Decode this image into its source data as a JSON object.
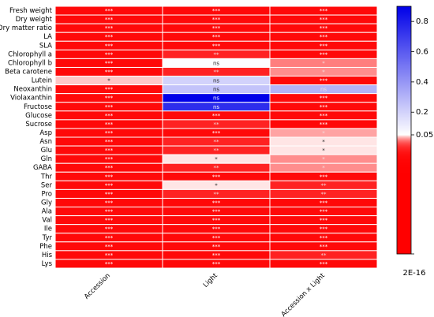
{
  "chart_data": {
    "type": "heatmap",
    "rows": [
      "Fresh weight",
      "Dry weight",
      "Dry matter ratio",
      "LA",
      "SLA",
      "Chlorophyll a",
      "Chlorophyll b",
      "Beta carotene",
      "Lutein",
      "Neoxanthin",
      "Violaxanthin",
      "Fructose",
      "Glucose",
      "Sucrose",
      "Asp",
      "Asn",
      "Glu",
      "Gln",
      "GABA",
      "Thr",
      "Ser",
      "Pro",
      "Gly",
      "Ala",
      "Val",
      "Ile",
      "Tyr",
      "Phe",
      "His",
      "Lys"
    ],
    "columns": [
      "Accession",
      "Light",
      "Accession x Light"
    ],
    "values": [
      [
        0.0001,
        0.0001,
        0.0001
      ],
      [
        0.0001,
        0.0001,
        0.0001
      ],
      [
        0.0001,
        0.0001,
        0.0001
      ],
      [
        0.0001,
        0.0001,
        0.0001
      ],
      [
        0.0001,
        0.0001,
        0.0001
      ],
      [
        0.0001,
        0.001,
        0.0001
      ],
      [
        0.0001,
        0.06,
        0.012
      ],
      [
        0.0001,
        0.001,
        0.015
      ],
      [
        0.03,
        0.2,
        0.0001
      ],
      [
        0.0001,
        0.25,
        0.3
      ],
      [
        0.0001,
        0.9,
        0.0001
      ],
      [
        0.0001,
        0.75,
        0.0001
      ],
      [
        0.0001,
        0.0001,
        0.0001
      ],
      [
        0.0001,
        0.001,
        0.0001
      ],
      [
        0.0001,
        0.0001,
        0.02
      ],
      [
        0.0001,
        0.001,
        0.04
      ],
      [
        0.0001,
        0.001,
        0.04
      ],
      [
        0.0001,
        0.04,
        0.015
      ],
      [
        0.0001,
        0.001,
        0.015
      ],
      [
        0.0001,
        0.0001,
        0.0001
      ],
      [
        0.0001,
        0.04,
        0.001
      ],
      [
        0.0001,
        0.001,
        0.001
      ],
      [
        0.0001,
        0.0001,
        0.0001
      ],
      [
        0.0001,
        0.0001,
        0.0001
      ],
      [
        0.0001,
        0.0001,
        0.0001
      ],
      [
        0.0001,
        0.0001,
        0.0001
      ],
      [
        0.0001,
        0.0001,
        0.0001
      ],
      [
        0.0001,
        0.0001,
        0.0001
      ],
      [
        0.0001,
        0.0001,
        0.001
      ],
      [
        0.0001,
        0.0001,
        0.0001
      ]
    ],
    "labels": [
      [
        "***",
        "***",
        "***"
      ],
      [
        "***",
        "***",
        "***"
      ],
      [
        "***",
        "***",
        "***"
      ],
      [
        "***",
        "***",
        "***"
      ],
      [
        "***",
        "***",
        "***"
      ],
      [
        "***",
        "**",
        "***"
      ],
      [
        "***",
        "ns",
        "*"
      ],
      [
        "***",
        "**",
        "*"
      ],
      [
        "*",
        "ns",
        "***"
      ],
      [
        "***",
        "ns",
        "ns"
      ],
      [
        "***",
        "ns",
        "***"
      ],
      [
        "***",
        "ns",
        "***"
      ],
      [
        "***",
        "***",
        "***"
      ],
      [
        "***",
        "**",
        "***"
      ],
      [
        "***",
        "***",
        "*"
      ],
      [
        "***",
        "**",
        "*"
      ],
      [
        "***",
        "**",
        "*"
      ],
      [
        "***",
        "*",
        "*"
      ],
      [
        "***",
        "**",
        "*"
      ],
      [
        "***",
        "***",
        "***"
      ],
      [
        "***",
        "*",
        "**"
      ],
      [
        "***",
        "**",
        "**"
      ],
      [
        "***",
        "***",
        "***"
      ],
      [
        "***",
        "***",
        "***"
      ],
      [
        "***",
        "***",
        "***"
      ],
      [
        "***",
        "***",
        "***"
      ],
      [
        "***",
        "***",
        "***"
      ],
      [
        "***",
        "***",
        "***"
      ],
      [
        "***",
        "***",
        "**"
      ],
      [
        "***",
        "***",
        "***"
      ]
    ],
    "clim": [
      2e-16,
      0.9
    ],
    "cmid": 0.05,
    "colors": {
      "low": "#ff0000",
      "mid": "#ffffff",
      "high": "#0000e8"
    },
    "colorbar_ticks": [
      {
        "value": 2e-16,
        "label": "2E-16"
      },
      0.05,
      0.2,
      0.4,
      0.6,
      0.8
    ]
  }
}
